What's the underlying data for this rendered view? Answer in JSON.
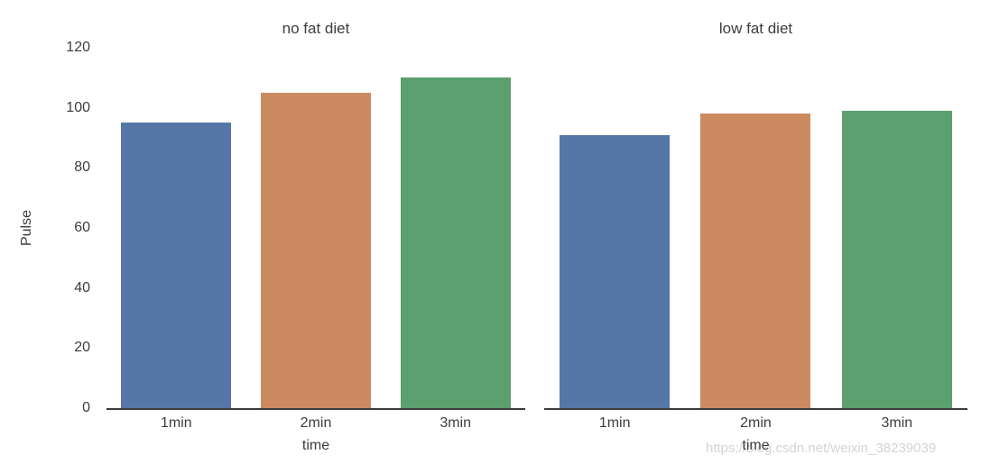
{
  "watermark": {
    "text": "https://blog.csdn.net/weixin_38239039"
  },
  "chart_data": {
    "type": "bar",
    "title": "",
    "ylabel": "Pulse",
    "ylim": [
      0,
      120
    ],
    "yticks": [
      0,
      20,
      40,
      60,
      80,
      100,
      120
    ],
    "grid": false,
    "legend": "none",
    "bar_colors": [
      "#5577a8",
      "#cc8a61",
      "#5ba06e"
    ],
    "axis_line_color": "#3c3c3c",
    "categories": [
      "1min",
      "2min",
      "3min"
    ],
    "panels": [
      {
        "title": "no fat diet",
        "xlabel": "time",
        "categories": [
          "1min",
          "2min",
          "3min"
        ],
        "values": [
          95,
          105,
          110
        ]
      },
      {
        "title": "low fat diet",
        "xlabel": "time",
        "categories": [
          "1min",
          "2min",
          "3min"
        ],
        "values": [
          91,
          98,
          99
        ]
      }
    ]
  }
}
